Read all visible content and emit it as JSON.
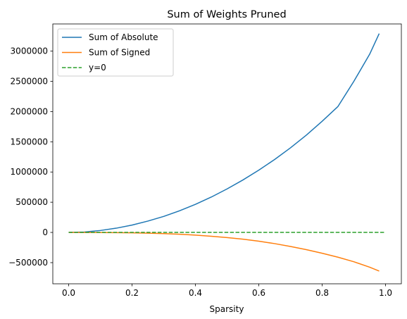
{
  "chart_data": {
    "type": "line",
    "title": "Sum of Weights Pruned",
    "xlabel": "Sparsity",
    "ylabel": "",
    "xlim": [
      -0.05,
      1.05
    ],
    "ylim": [
      -850000,
      3450000
    ],
    "xticks": [
      0.0,
      0.2,
      0.4,
      0.6,
      0.8,
      1.0
    ],
    "xtick_labels": [
      "0.0",
      "0.2",
      "0.4",
      "0.6",
      "0.8",
      "1.0"
    ],
    "yticks": [
      -500000,
      0,
      500000,
      1000000,
      1500000,
      2000000,
      2500000,
      3000000
    ],
    "ytick_labels": [
      "−500000",
      "0",
      "500000",
      "1000000",
      "1500000",
      "2000000",
      "2500000",
      "3000000"
    ],
    "grid": false,
    "legend_position": "top-left",
    "series": [
      {
        "name": "Sum of Absolute",
        "color": "#1f77b4",
        "style": "solid",
        "x": [
          0.0,
          0.05,
          0.1,
          0.15,
          0.2,
          0.25,
          0.3,
          0.35,
          0.4,
          0.45,
          0.5,
          0.55,
          0.6,
          0.65,
          0.7,
          0.75,
          0.8,
          0.85,
          0.9,
          0.95,
          0.98
        ],
        "values": [
          0,
          7000,
          32000,
          70000,
          122000,
          188000,
          265000,
          358000,
          465000,
          585000,
          720000,
          868000,
          1030000,
          1207000,
          1400000,
          1610000,
          1840000,
          2085000,
          2500000,
          2950000,
          3290000
        ]
      },
      {
        "name": "Sum of Signed",
        "color": "#ff7f0e",
        "style": "solid",
        "x": [
          0.0,
          0.05,
          0.1,
          0.15,
          0.2,
          0.25,
          0.3,
          0.35,
          0.4,
          0.45,
          0.5,
          0.55,
          0.6,
          0.65,
          0.7,
          0.75,
          0.8,
          0.85,
          0.9,
          0.95,
          0.98
        ],
        "values": [
          0,
          -300,
          -1500,
          -3500,
          -7000,
          -12500,
          -20000,
          -30000,
          -45000,
          -63000,
          -85000,
          -112000,
          -145000,
          -185000,
          -232000,
          -285000,
          -345000,
          -410000,
          -485000,
          -575000,
          -640000
        ]
      },
      {
        "name": "y=0",
        "color": "#2ca02c",
        "style": "dashed",
        "x": [
          0.0,
          1.0
        ],
        "values": [
          0,
          0
        ]
      }
    ]
  }
}
